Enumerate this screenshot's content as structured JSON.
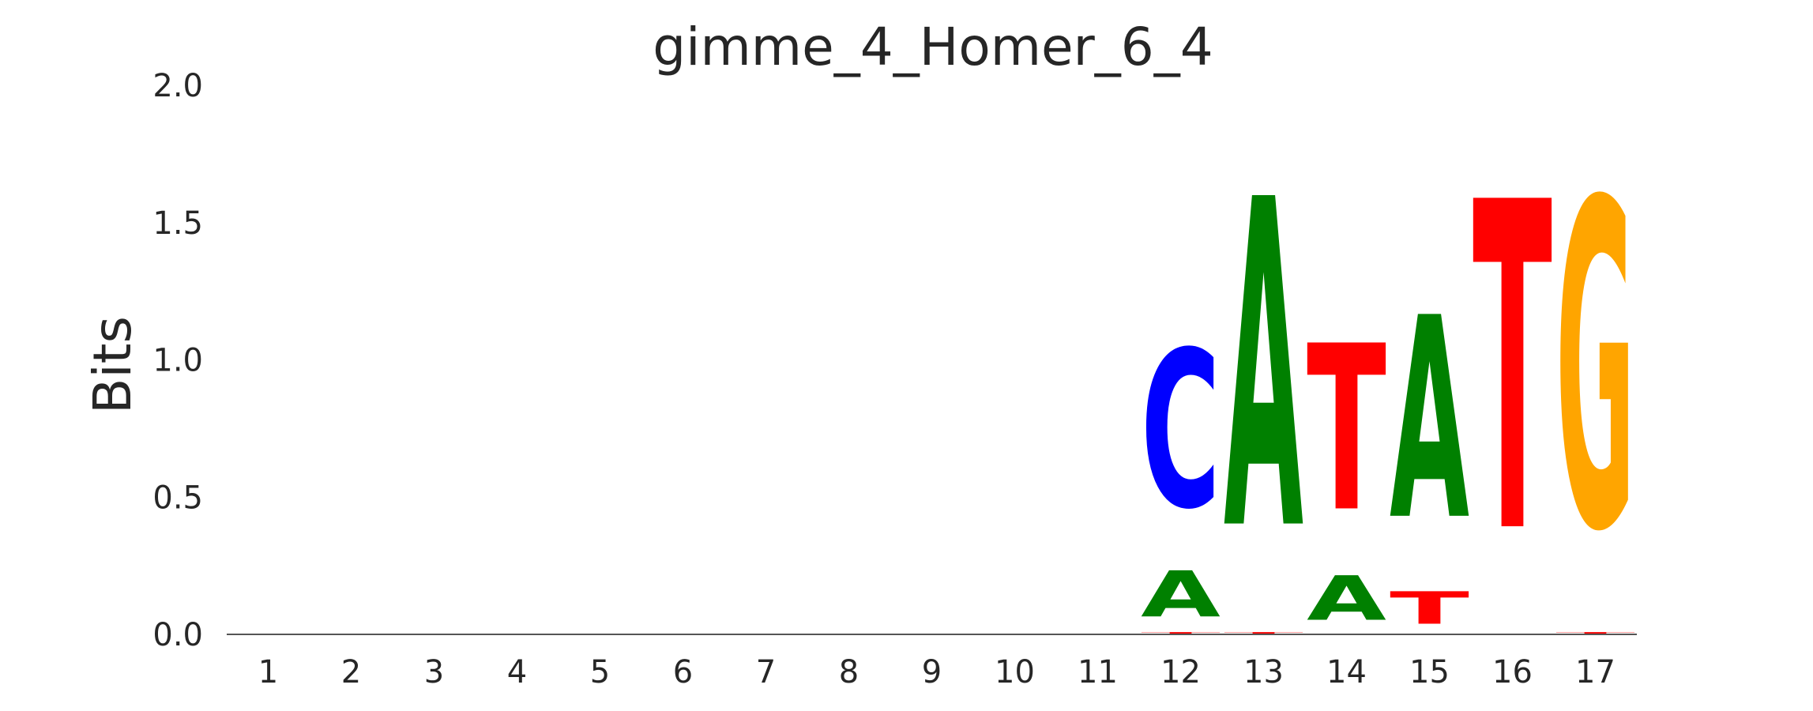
{
  "chart_data": {
    "type": "sequence-logo",
    "title": "gimme_4_Homer_6_4",
    "xlabel": "",
    "ylabel": "Bits",
    "ylim": [
      0,
      2
    ],
    "yticks": [
      "0.0",
      "0.5",
      "1.0",
      "1.5",
      "2.0"
    ],
    "positions": [
      "1",
      "2",
      "3",
      "4",
      "5",
      "6",
      "7",
      "8",
      "9",
      "10",
      "11",
      "12",
      "13",
      "14",
      "15",
      "16",
      "17"
    ],
    "colors": {
      "A": "#008000",
      "C": "#0000ff",
      "G": "#ffa500",
      "T": "#ff0000"
    },
    "stacks": [
      [],
      [],
      [],
      [],
      [],
      [],
      [],
      [],
      [],
      [],
      [],
      [
        {
          "letter": "T",
          "bits": 0.01
        },
        {
          "letter": "A",
          "bits": 0.27
        },
        {
          "letter": "C",
          "bits": 0.92
        }
      ],
      [
        {
          "letter": "T",
          "bits": 0.01
        },
        {
          "letter": "A",
          "bits": 1.92
        }
      ],
      [
        {
          "letter": "A",
          "bits": 0.26
        },
        {
          "letter": "T",
          "bits": 0.97
        }
      ],
      [
        {
          "letter": "T",
          "bits": 0.19
        },
        {
          "letter": "A",
          "bits": 1.18
        }
      ],
      [
        {
          "letter": "T",
          "bits": 1.92
        }
      ],
      [
        {
          "letter": "T",
          "bits": 0.01
        },
        {
          "letter": "G",
          "bits": 1.91
        }
      ]
    ]
  }
}
